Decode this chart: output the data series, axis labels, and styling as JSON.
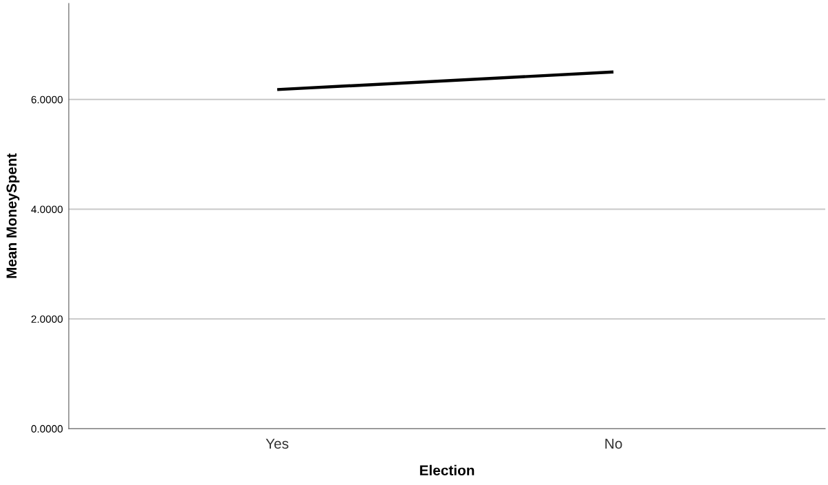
{
  "chart_data": {
    "type": "line",
    "xlabel": "Election",
    "ylabel": "Mean MoneySpent",
    "categories": [
      "Yes",
      "No"
    ],
    "series": [
      {
        "color": "#000000",
        "values": [
          6.18,
          6.5
        ]
      }
    ],
    "ylim": [
      0,
      7.75
    ],
    "yticks": [
      {
        "value": 0,
        "label": "0.0000"
      },
      {
        "value": 2,
        "label": "2.0000"
      },
      {
        "value": 4,
        "label": "4.0000"
      },
      {
        "value": 6,
        "label": "6.0000"
      }
    ],
    "grid": "y",
    "legend": false,
    "marker": "none",
    "line_style": "solid"
  }
}
